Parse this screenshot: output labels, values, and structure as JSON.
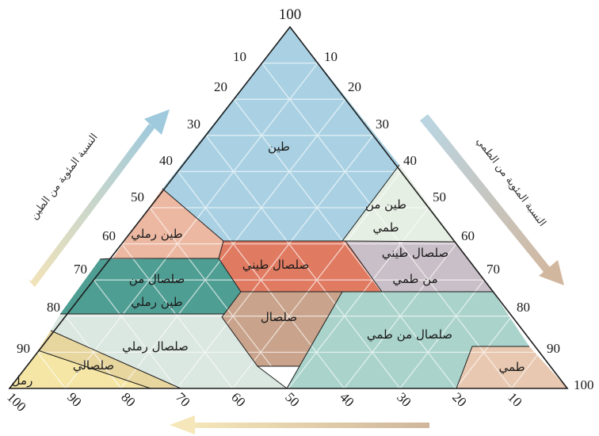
{
  "apex_label": "100",
  "left_ticks": [
    "10",
    "20",
    "30",
    "40",
    "50",
    "60",
    "70",
    "80",
    "90"
  ],
  "right_ticks": [
    "10",
    "20",
    "30",
    "40",
    "50",
    "60",
    "70",
    "80",
    "90",
    "100"
  ],
  "bottom_ticks": [
    "100",
    "90",
    "80",
    "70",
    "60",
    "50",
    "40",
    "30",
    "20",
    "10"
  ],
  "axis_titles": {
    "left": "النسبة المئوية من الطين",
    "right": "النسبة المئوية من الطمي"
  },
  "regions": {
    "clay": "طين",
    "silty_clay": [
      "طين من",
      "طمي"
    ],
    "sandy_clay": "طين رملي",
    "clay_loam": "صلصال طيني",
    "silty_clay_loam": [
      "صلصال طيني",
      "من طمي"
    ],
    "sandy_clay_loam": [
      "صلصال من",
      "طين رملي"
    ],
    "loam": "صلصال",
    "silt_loam": "صلصال من طمي",
    "sandy_loam": "صلصال رملي",
    "loamy_sand": "صلصالي",
    "sand": "رمل",
    "silt": "طمي"
  },
  "colors": {
    "clay": "#a9d1e3",
    "silty_clay": "#e6efe3",
    "sandy_clay": "#ecb8a2",
    "clay_loam": "#e07b62",
    "silty_clay_loam": "#c9bfc8",
    "sandy_clay_loam": "#4f9e93",
    "loam": "#c9a38b",
    "silt_loam": "#a9d3cb",
    "sandy_loam": "#dbe7e1",
    "loamy_sand": "#e8d69f",
    "sand": "#f5e6a6",
    "silt": "#e8c8b0"
  }
}
